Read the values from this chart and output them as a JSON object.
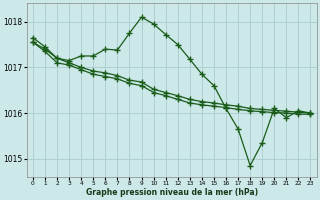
{
  "background_color": "#cce8e8",
  "grid_color": "#aacccc",
  "line_color": "#1a5c1a",
  "ylim": [
    1014.6,
    1018.4
  ],
  "xlim": [
    -0.5,
    23.5
  ],
  "yticks": [
    1015,
    1016,
    1017,
    1018
  ],
  "xticks": [
    0,
    1,
    2,
    3,
    4,
    5,
    6,
    7,
    8,
    9,
    10,
    11,
    12,
    13,
    14,
    15,
    16,
    17,
    18,
    19,
    20,
    21,
    22,
    23
  ],
  "xlabel": "Graphe pression niveau de la mer (hPa)",
  "s_volatile_y": [
    1017.55,
    1017.4,
    1017.2,
    1017.15,
    1017.25,
    1017.25,
    1017.4,
    1017.38,
    1017.75,
    1018.1,
    1017.95,
    1017.72,
    1017.5,
    1017.18,
    1016.85,
    1016.6,
    1016.1,
    1015.65,
    1014.85,
    1015.35,
    1016.1,
    1015.9,
    1016.05,
    1016.0
  ],
  "s_upper_linear_y": [
    1017.65,
    1017.45,
    1017.2,
    1017.1,
    1017.0,
    1016.92,
    1016.88,
    1016.82,
    1016.72,
    1016.68,
    1016.52,
    1016.45,
    1016.38,
    1016.3,
    1016.25,
    1016.22,
    1016.18,
    1016.15,
    1016.1,
    1016.08,
    1016.06,
    1016.04,
    1016.02,
    1016.0
  ],
  "s_lower_linear_y": [
    1017.55,
    1017.35,
    1017.1,
    1017.05,
    1016.95,
    1016.85,
    1016.8,
    1016.75,
    1016.65,
    1016.6,
    1016.45,
    1016.38,
    1016.3,
    1016.22,
    1016.18,
    1016.15,
    1016.12,
    1016.08,
    1016.05,
    1016.03,
    1016.01,
    1016.0,
    1015.98,
    1015.97
  ]
}
